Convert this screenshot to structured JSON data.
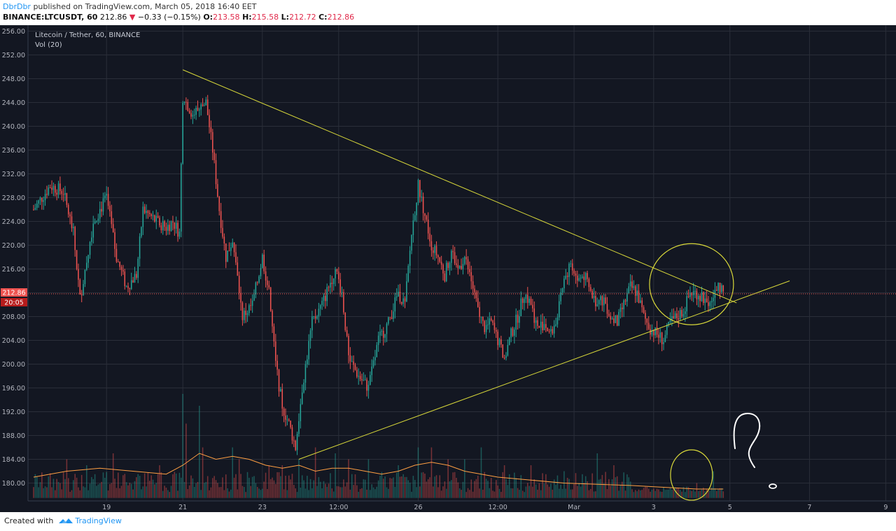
{
  "header": {
    "author": "DbrDbr",
    "published_text": " published on TradingView.com, March 05, 2018 16:40 EET",
    "symbol": "BINANCE:LTCUSDT, 60",
    "last": "212.86",
    "change_arrow": "▼",
    "change": "−0.33 (−0.15%)",
    "o_label": "O:",
    "o_value": "213.58",
    "h_label": "H:",
    "h_value": "215.58",
    "l_label": "L:",
    "l_value": "212.72",
    "c_label": "C:",
    "c_value": "212.86"
  },
  "legend": {
    "title": "Litecoin / Tether, 60, BINANCE",
    "indicator": "Vol (20)"
  },
  "price_badge": {
    "price": "212.86",
    "countdown": "20:05"
  },
  "footer": {
    "created_with": "Created with",
    "brand": "TradingView"
  },
  "colors": {
    "background": "#131722",
    "up": "#26a69a",
    "down": "#ef5350",
    "trendline": "#d9d93a",
    "vol_ma": "#ff9f43",
    "grid": "#2a2e39"
  },
  "icons": [
    "tradingview-logo-icon"
  ],
  "chart_data": {
    "type": "candlestick",
    "title": "Litecoin / Tether, 60, BINANCE",
    "y_range": [
      177,
      257
    ],
    "y_ticks": [
      "256.00",
      "252.00",
      "248.00",
      "244.00",
      "240.00",
      "236.00",
      "232.00",
      "228.00",
      "224.00",
      "220.00",
      "216.00",
      "212.00",
      "208.00",
      "204.00",
      "200.00",
      "196.00",
      "192.00",
      "188.00",
      "184.00",
      "180.00"
    ],
    "x_ticks": [
      "19",
      "21",
      "23",
      "12:00",
      "26",
      "12:00",
      "Mar",
      "3",
      "5",
      "7",
      "9"
    ],
    "grid": true,
    "price_path": [
      [
        0,
        226
      ],
      [
        5,
        230
      ],
      [
        9,
        229
      ],
      [
        12,
        222
      ],
      [
        14,
        211
      ],
      [
        18,
        224
      ],
      [
        22,
        228
      ],
      [
        25,
        218
      ],
      [
        28,
        213
      ],
      [
        31,
        215
      ],
      [
        33,
        226
      ],
      [
        37,
        224
      ],
      [
        40,
        223
      ],
      [
        42,
        224
      ],
      [
        44,
        222
      ],
      [
        45,
        245
      ],
      [
        48,
        242
      ],
      [
        50,
        243
      ],
      [
        52,
        244
      ],
      [
        54,
        236
      ],
      [
        56,
        226
      ],
      [
        58,
        218
      ],
      [
        60,
        221
      ],
      [
        63,
        208
      ],
      [
        66,
        210
      ],
      [
        69,
        218
      ],
      [
        71,
        212
      ],
      [
        73,
        200
      ],
      [
        75,
        193
      ],
      [
        77,
        190
      ],
      [
        79,
        186
      ],
      [
        81,
        196
      ],
      [
        84,
        207
      ],
      [
        87,
        210
      ],
      [
        91,
        216
      ],
      [
        93,
        212
      ],
      [
        95,
        201
      ],
      [
        98,
        198
      ],
      [
        101,
        196
      ],
      [
        104,
        204
      ],
      [
        107,
        207
      ],
      [
        110,
        212
      ],
      [
        112,
        210
      ],
      [
        114,
        222
      ],
      [
        116,
        230
      ],
      [
        118,
        225
      ],
      [
        120,
        220
      ],
      [
        122,
        218
      ],
      [
        124,
        215
      ],
      [
        126,
        219
      ],
      [
        128,
        216
      ],
      [
        130,
        218
      ],
      [
        132,
        214
      ],
      [
        134,
        209
      ],
      [
        136,
        206
      ],
      [
        138,
        207
      ],
      [
        140,
        204
      ],
      [
        142,
        201
      ],
      [
        144,
        205
      ],
      [
        146,
        208
      ],
      [
        148,
        212
      ],
      [
        150,
        210
      ],
      [
        152,
        206
      ],
      [
        154,
        207
      ],
      [
        156,
        205
      ],
      [
        158,
        208
      ],
      [
        160,
        214
      ],
      [
        162,
        217
      ],
      [
        164,
        214
      ],
      [
        166,
        215
      ],
      [
        168,
        212
      ],
      [
        170,
        210
      ],
      [
        172,
        211
      ],
      [
        174,
        208
      ],
      [
        176,
        207
      ],
      [
        178,
        210
      ],
      [
        180,
        213
      ],
      [
        182,
        212
      ],
      [
        184,
        208
      ],
      [
        186,
        206
      ],
      [
        188,
        205
      ],
      [
        190,
        204
      ],
      [
        192,
        207
      ],
      [
        194,
        208
      ],
      [
        196,
        209
      ],
      [
        198,
        212
      ],
      [
        200,
        212
      ],
      [
        202,
        211
      ],
      [
        204,
        210
      ],
      [
        206,
        213
      ],
      [
        208,
        212.86
      ]
    ],
    "volume_ma": [
      [
        0,
        181
      ],
      [
        10,
        182
      ],
      [
        20,
        182.5
      ],
      [
        30,
        182
      ],
      [
        40,
        181.5
      ],
      [
        45,
        183
      ],
      [
        50,
        185
      ],
      [
        55,
        184
      ],
      [
        60,
        184.5
      ],
      [
        65,
        184
      ],
      [
        70,
        183
      ],
      [
        75,
        182.5
      ],
      [
        80,
        183
      ],
      [
        85,
        182
      ],
      [
        90,
        182.5
      ],
      [
        95,
        182.5
      ],
      [
        100,
        182
      ],
      [
        105,
        181.5
      ],
      [
        110,
        182
      ],
      [
        115,
        183
      ],
      [
        120,
        183.5
      ],
      [
        125,
        183
      ],
      [
        130,
        182
      ],
      [
        135,
        181.5
      ],
      [
        140,
        181
      ],
      [
        150,
        180.5
      ],
      [
        160,
        180
      ],
      [
        170,
        179.8
      ],
      [
        180,
        179.6
      ],
      [
        190,
        179.3
      ],
      [
        200,
        179
      ],
      [
        208,
        179
      ]
    ],
    "volume_spikes": [
      [
        10,
        184
      ],
      [
        16,
        183
      ],
      [
        24,
        185
      ],
      [
        38,
        183
      ],
      [
        45,
        195
      ],
      [
        46,
        190
      ],
      [
        50,
        193
      ],
      [
        51,
        186
      ],
      [
        60,
        186
      ],
      [
        62,
        184
      ],
      [
        71,
        183
      ],
      [
        75,
        183
      ],
      [
        80,
        184
      ],
      [
        85,
        186
      ],
      [
        91,
        185
      ],
      [
        95,
        184
      ],
      [
        101,
        184
      ],
      [
        110,
        183
      ],
      [
        116,
        186
      ],
      [
        120,
        186
      ],
      [
        125,
        184
      ],
      [
        130,
        184
      ],
      [
        135,
        186
      ],
      [
        142,
        183
      ],
      [
        150,
        183
      ],
      [
        160,
        182
      ],
      [
        170,
        185
      ],
      [
        175,
        183
      ],
      [
        200,
        180
      ],
      [
        205,
        182
      ]
    ],
    "trendlines": [
      {
        "from": [
          45,
          249.5
        ],
        "to": [
          212,
          210.3
        ]
      },
      {
        "from": [
          80,
          184
        ],
        "to": [
          228,
          214
        ]
      }
    ],
    "annotations": [
      {
        "type": "circle",
        "center": [
          198,
          212.5
        ],
        "label": ""
      },
      {
        "type": "circle",
        "center": [
          198,
          181
        ],
        "label": ""
      },
      {
        "type": "question-mark",
        "label": "?"
      }
    ],
    "last_price": 212.86
  }
}
